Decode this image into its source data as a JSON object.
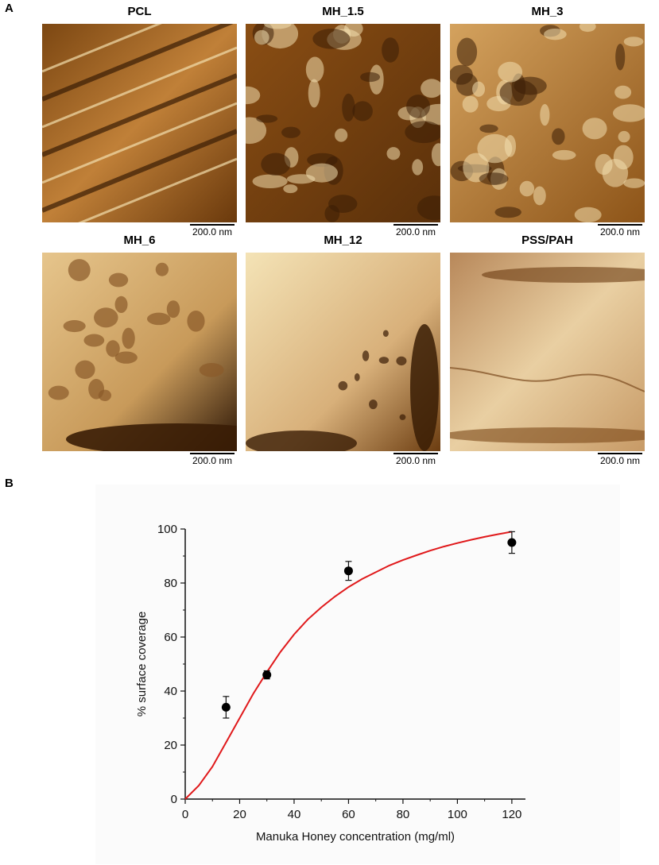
{
  "panel_a": {
    "letter": "A",
    "panels": [
      {
        "title": "PCL",
        "scale_bar": "200.0 nm",
        "tone": "fibrous"
      },
      {
        "title": "MH_1.5",
        "scale_bar": "200.0 nm",
        "tone": "patchy-dark"
      },
      {
        "title": "MH_3",
        "scale_bar": "200.0 nm",
        "tone": "porous"
      },
      {
        "title": "MH_6",
        "scale_bar": "200.0 nm",
        "tone": "islands"
      },
      {
        "title": "MH_12",
        "scale_bar": "200.0 nm",
        "tone": "smooth-edge"
      },
      {
        "title": "PSS/PAH",
        "scale_bar": "200.0 nm",
        "tone": "smooth"
      }
    ],
    "colors": {
      "dark": "#3a1d05",
      "mid": "#a8661c",
      "light": "#f3dfae"
    }
  },
  "panel_b": {
    "letter": "B"
  },
  "chart_data": {
    "type": "scatter",
    "xlabel": "Manuka Honey concentration (mg/ml)",
    "ylabel": "% surface coverage",
    "xlim": [
      0,
      125
    ],
    "ylim": [
      0,
      100
    ],
    "xticks": [
      0,
      20,
      40,
      60,
      80,
      100,
      120
    ],
    "yticks": [
      0,
      20,
      40,
      60,
      80,
      100
    ],
    "points": [
      {
        "x": 15,
        "y": 34,
        "err": 4
      },
      {
        "x": 30,
        "y": 46,
        "err": 1.5
      },
      {
        "x": 60,
        "y": 84.5,
        "err": 3.5
      },
      {
        "x": 120,
        "y": 95,
        "err": 4
      }
    ],
    "fit_curve": {
      "x": [
        0,
        5,
        10,
        15,
        20,
        25,
        30,
        35,
        40,
        45,
        50,
        55,
        60,
        65,
        70,
        75,
        80,
        85,
        90,
        95,
        100,
        105,
        110,
        115,
        120
      ],
      "y": [
        0,
        5,
        12,
        21,
        30,
        39,
        47,
        54.5,
        61,
        66.5,
        71,
        75,
        78.5,
        81.5,
        84,
        86.5,
        88.5,
        90.3,
        92,
        93.5,
        94.8,
        96,
        97.1,
        98.1,
        99
      ],
      "color": "#e0191b"
    },
    "grid": false,
    "marker_color": "#000000"
  }
}
